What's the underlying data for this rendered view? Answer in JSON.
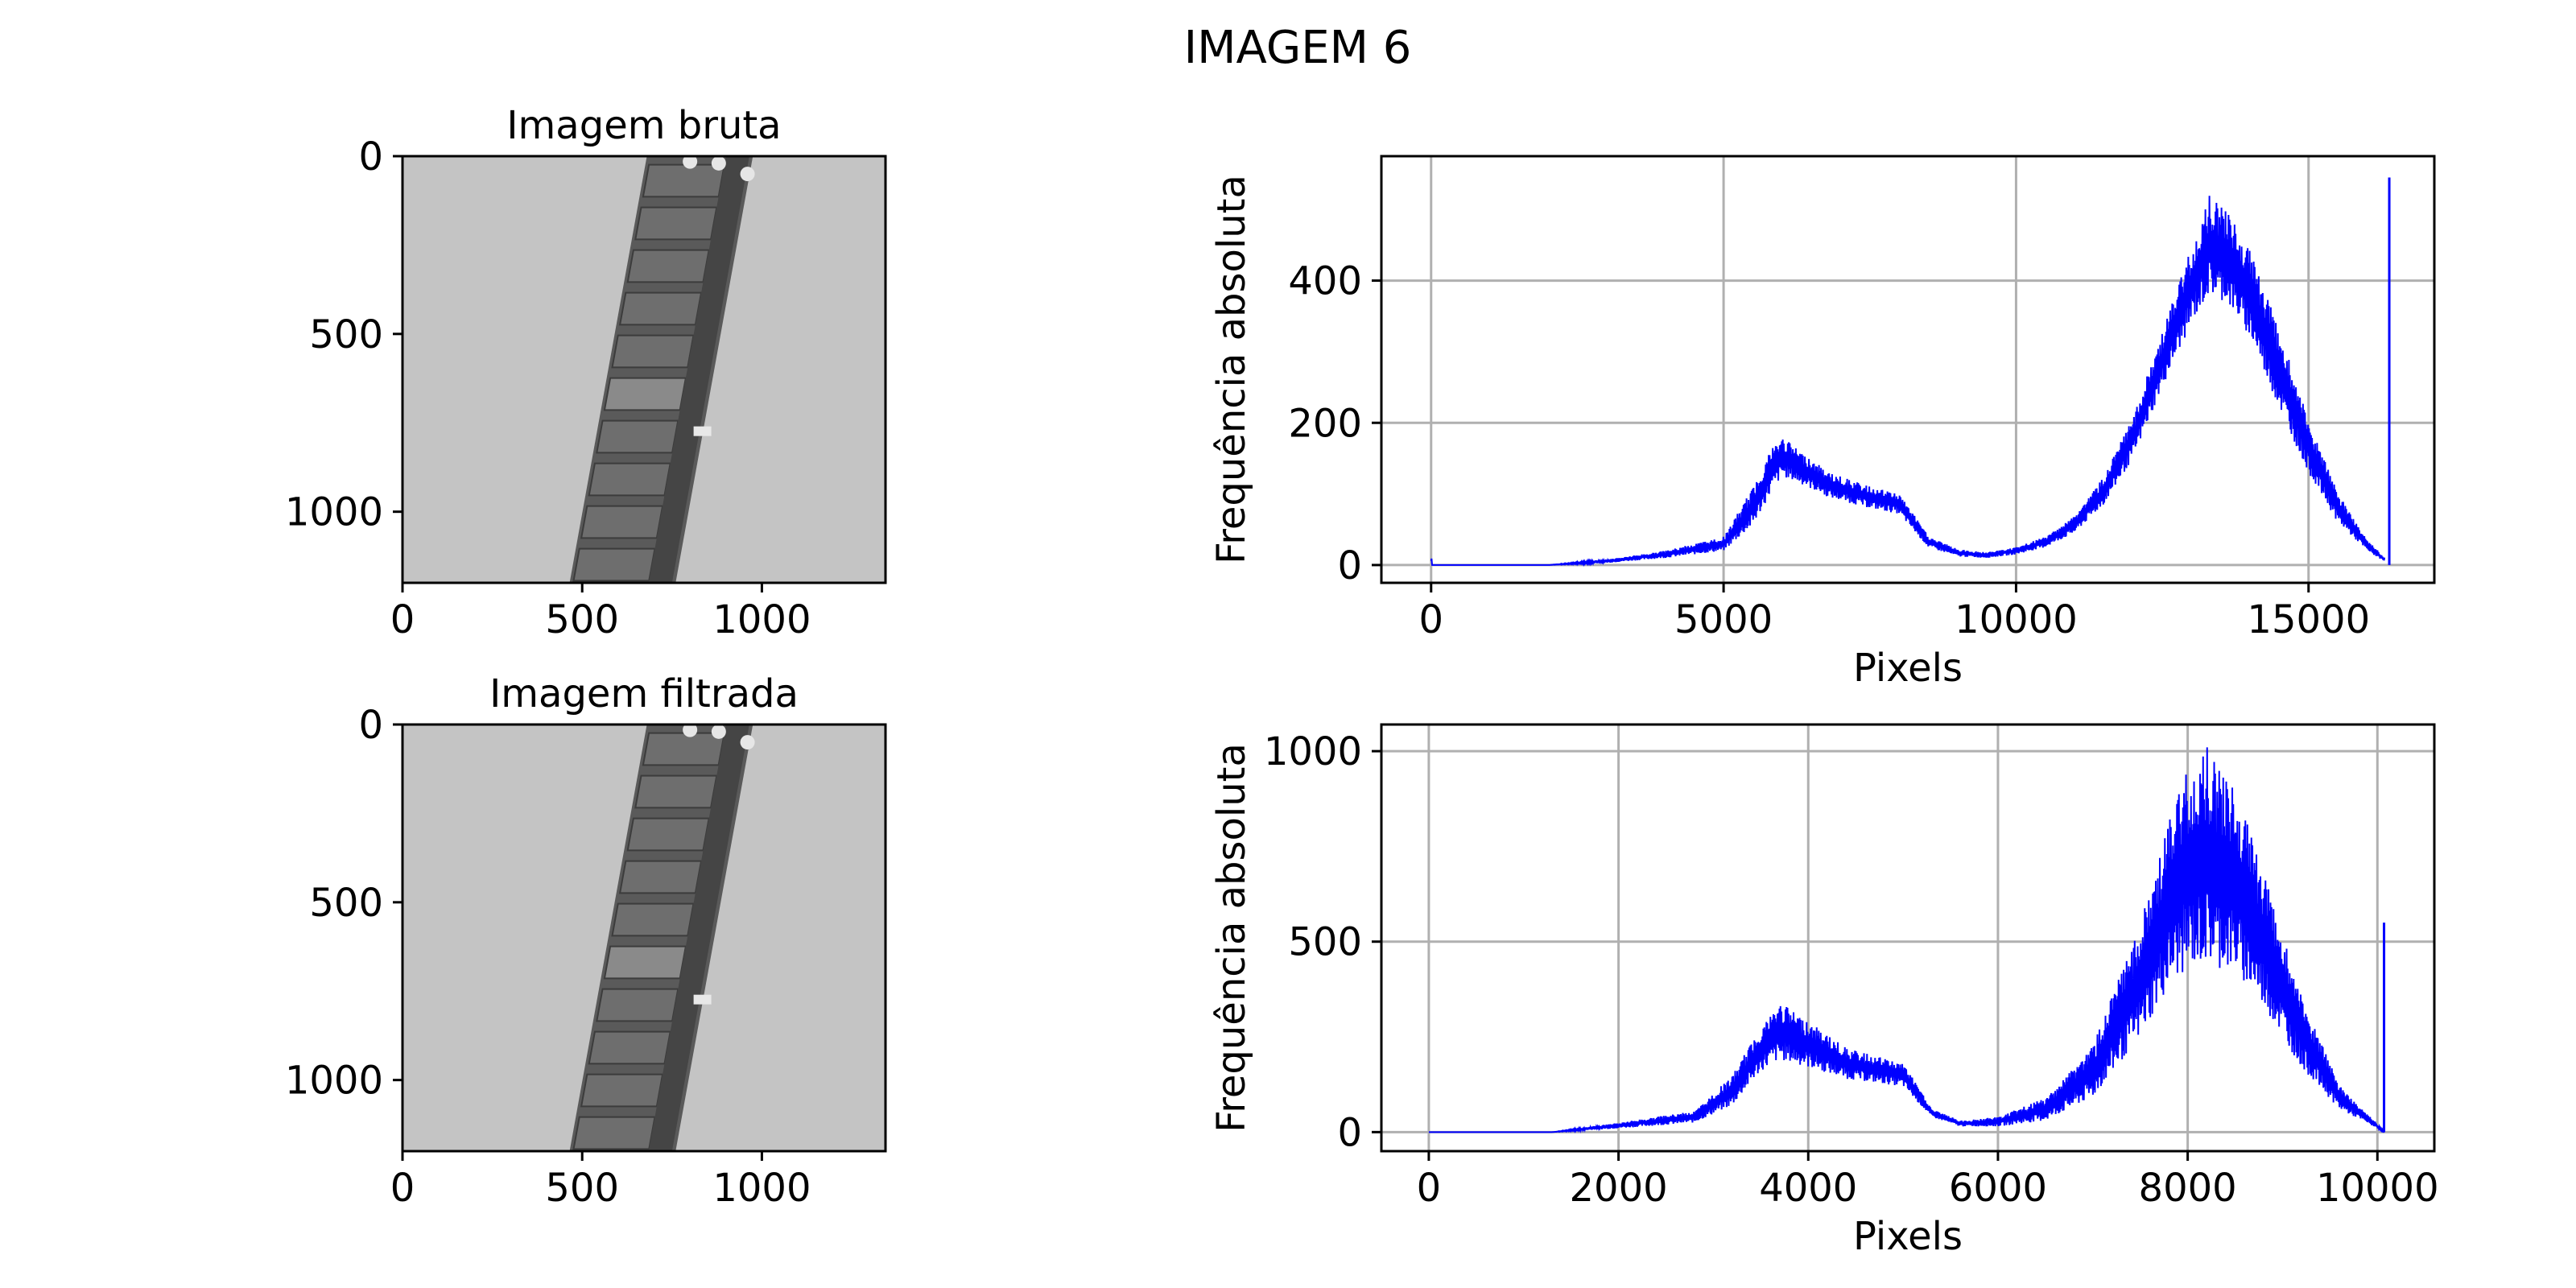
{
  "figure": {
    "title": "IMAGEM 6"
  },
  "colors": {
    "line": "#0000ff",
    "grid": "#b0b0b0",
    "axes": "#000000",
    "image_bg": "#c4c4c4",
    "strip": "#5a5a5a"
  },
  "chart_data": [
    {
      "type": "image",
      "title": "Imagem bruta",
      "xlim": [
        0,
        1344
      ],
      "ylim": [
        1200,
        0
      ],
      "xticks": [
        0,
        500,
        1000
      ],
      "yticks": [
        0,
        500,
        1000
      ],
      "xtick_labels": [
        "0",
        "500",
        "1000"
      ],
      "ytick_labels": [
        "0",
        "500",
        "1000"
      ]
    },
    {
      "type": "line",
      "title": "",
      "xlabel": "Pixels",
      "ylabel": "Frequência absoluta",
      "xlim": [
        -850,
        17150
      ],
      "ylim": [
        -25,
        575
      ],
      "xticks": [
        0,
        5000,
        10000,
        15000
      ],
      "yticks": [
        0,
        200,
        400
      ],
      "xtick_labels": [
        "0",
        "5000",
        "10000",
        "15000"
      ],
      "ytick_labels": [
        "0",
        "200",
        "400"
      ],
      "grid": true,
      "series": [
        {
          "color": "#0000ff",
          "envelope_x": [
            0,
            2000,
            3000,
            4000,
            5000,
            5500,
            5800,
            6000,
            6300,
            6800,
            7500,
            8000,
            8500,
            9000,
            9500,
            10000,
            10500,
            11000,
            11500,
            12000,
            12500,
            13000,
            13300,
            13600,
            14000,
            14500,
            15000,
            15500,
            16000,
            16300
          ],
          "envelope_low": [
            0,
            0,
            3,
            10,
            20,
            55,
            100,
            125,
            115,
            95,
            80,
            72,
            25,
            12,
            10,
            15,
            25,
            45,
            85,
            150,
            250,
            340,
            380,
            370,
            320,
            220,
            130,
            60,
            20,
            5
          ],
          "envelope_high": [
            0,
            0,
            8,
            20,
            40,
            110,
            165,
            180,
            160,
            130,
            110,
            100,
            40,
            22,
            18,
            25,
            40,
            70,
            125,
            210,
            330,
            450,
            520,
            500,
            440,
            330,
            200,
            100,
            35,
            10
          ],
          "spike": {
            "x": 16380,
            "y": 545
          }
        }
      ]
    },
    {
      "type": "image",
      "title": "Imagem filtrada",
      "xlim": [
        0,
        1344
      ],
      "ylim": [
        1200,
        0
      ],
      "xticks": [
        0,
        500,
        1000
      ],
      "yticks": [
        0,
        500,
        1000
      ],
      "xtick_labels": [
        "0",
        "500",
        "1000"
      ],
      "ytick_labels": [
        "0",
        "500",
        "1000"
      ]
    },
    {
      "type": "line",
      "title": "",
      "xlabel": "Pixels",
      "ylabel": "Frequência absoluta",
      "xlim": [
        -500,
        10600
      ],
      "ylim": [
        -50,
        1070
      ],
      "xticks": [
        0,
        2000,
        4000,
        6000,
        8000,
        10000
      ],
      "yticks": [
        0,
        500,
        1000
      ],
      "xtick_labels": [
        "0",
        "2000",
        "4000",
        "6000",
        "8000",
        "10000"
      ],
      "ytick_labels": [
        "0",
        "500",
        "1000"
      ],
      "grid": true,
      "series": [
        {
          "color": "#0000ff",
          "envelope_x": [
            0,
            1300,
            2000,
            2800,
            3200,
            3500,
            3700,
            4000,
            4400,
            5000,
            5300,
            5600,
            6000,
            6500,
            7000,
            7500,
            7800,
            8000,
            8200,
            8500,
            8800,
            9200,
            9600,
            10000,
            10070
          ],
          "envelope_low": [
            0,
            0,
            10,
            25,
            70,
            160,
            190,
            170,
            140,
            120,
            40,
            15,
            15,
            30,
            90,
            250,
            380,
            430,
            440,
            420,
            330,
            170,
            60,
            10,
            0
          ],
          "envelope_high": [
            0,
            0,
            25,
            55,
            150,
            280,
            340,
            290,
            220,
            180,
            60,
            30,
            40,
            90,
            230,
            550,
            820,
            960,
            1010,
            900,
            680,
            350,
            120,
            20,
            0
          ],
          "spike": {
            "x": 10070,
            "y": 550
          }
        }
      ]
    }
  ]
}
